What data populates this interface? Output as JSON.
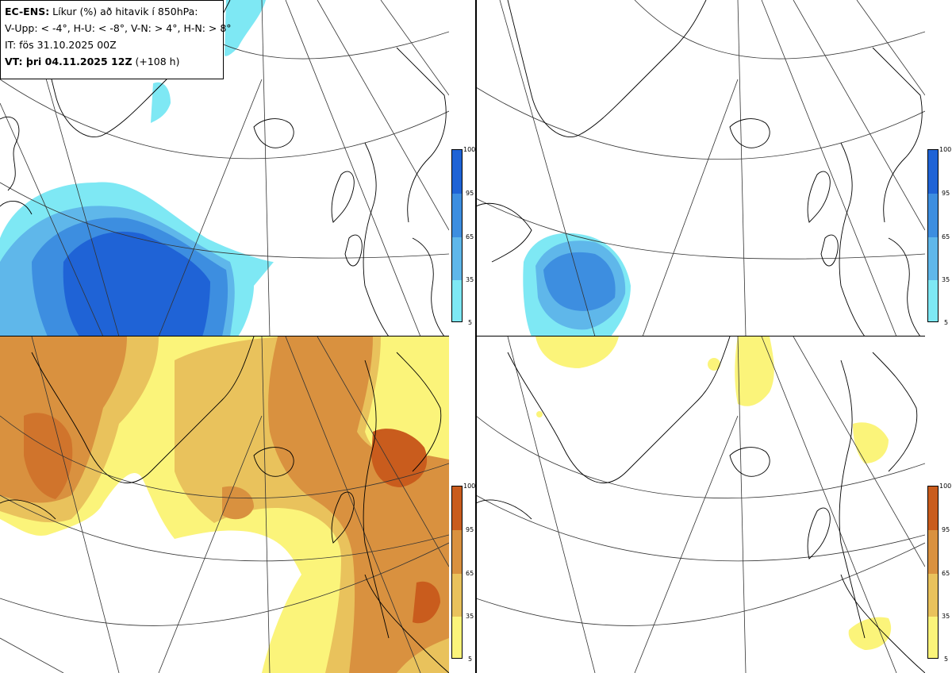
{
  "header": {
    "line1_bold": "EC-ENS:",
    "line1_rest": " Líkur (%) að hitavik í 850hPa:",
    "line2": "V-Upp: < -4°, H-U: < -8°, V-N: > 4°, H-N: > 8°",
    "line3": "IT: fös 31.10.2025 00Z",
    "line4_bold": "VT: þri 04.11.2025 12Z",
    "line4_rest": " (+108 h)"
  },
  "panels": [
    {
      "id": "v-upp",
      "palette": "blue",
      "intensity": "strong"
    },
    {
      "id": "h-u",
      "palette": "blue",
      "intensity": "moderate"
    },
    {
      "id": "v-n",
      "palette": "orange",
      "intensity": "strong"
    },
    {
      "id": "h-n",
      "palette": "orange",
      "intensity": "weak"
    }
  ],
  "colorbar": {
    "ticks": [
      "100",
      "95",
      "65",
      "35",
      "5"
    ],
    "blue_colors": [
      "#1f63d6",
      "#3d8ee0",
      "#5fb7ea",
      "#7ee8f4"
    ],
    "orange_colors": [
      "#c95c1d",
      "#d9913f",
      "#e9c25c",
      "#fbf47a"
    ]
  }
}
